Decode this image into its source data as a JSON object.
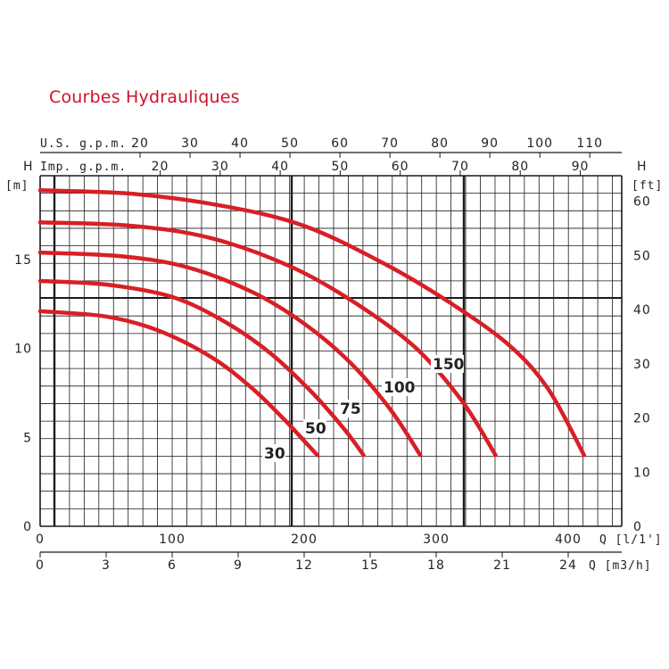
{
  "title": "Courbes Hydrauliques",
  "chart_data": {
    "type": "line",
    "title": "Courbes Hydrauliques",
    "axes": {
      "y_left_name": "H",
      "y_left_unit": "[m]",
      "y_right_name": "H",
      "y_right_unit": "[ft]",
      "x_bottom1_name": "Q [l/1']",
      "x_bottom2_name": "Q [m3/h]",
      "x_top1_name": "U.S. g.p.m.",
      "x_top2_name": "Imp. g.p.m."
    },
    "x_range_lmin": [
      0,
      420
    ],
    "y_range_m": [
      0,
      19.5
    ],
    "y_left_ticks": [
      0,
      5,
      10,
      15
    ],
    "y_right_ticks_ft": [
      0,
      10,
      20,
      30,
      40,
      50,
      60
    ],
    "x_lmin_ticks": [
      0,
      100,
      200,
      300,
      400
    ],
    "x_m3h_ticks": [
      0,
      3,
      6,
      9,
      12,
      15,
      18,
      21,
      24
    ],
    "x_usgpm_ticks": [
      20,
      30,
      40,
      50,
      60,
      70,
      80,
      90,
      100,
      110
    ],
    "x_impgpm_ticks": [
      20,
      30,
      40,
      50,
      60,
      70,
      80,
      90
    ],
    "grid": true,
    "series": [
      {
        "name": "30",
        "x_lmin": [
          0,
          50,
          90,
          130,
          160,
          185,
          200,
          210
        ],
        "y_m": [
          12.1,
          11.8,
          11.0,
          9.5,
          7.8,
          6.0,
          4.8,
          4.0
        ]
      },
      {
        "name": "50",
        "x_lmin": [
          0,
          50,
          100,
          140,
          175,
          205,
          230,
          245
        ],
        "y_m": [
          13.8,
          13.6,
          12.9,
          11.5,
          9.7,
          7.6,
          5.5,
          4.0
        ]
      },
      {
        "name": "75",
        "x_lmin": [
          0,
          60,
          110,
          160,
          200,
          235,
          265,
          288
        ],
        "y_m": [
          15.4,
          15.2,
          14.6,
          13.2,
          11.4,
          9.2,
          6.6,
          4.0
        ]
      },
      {
        "name": "100",
        "x_lmin": [
          0,
          70,
          130,
          190,
          240,
          285,
          320,
          345
        ],
        "y_m": [
          17.1,
          16.9,
          16.2,
          14.6,
          12.5,
          10.0,
          7.0,
          4.0
        ]
      },
      {
        "name": "150",
        "x_lmin": [
          0,
          70,
          140,
          200,
          260,
          310,
          355,
          385,
          412
        ],
        "y_m": [
          18.9,
          18.7,
          18.0,
          16.9,
          14.8,
          12.6,
          10.2,
          7.7,
          4.0
        ]
      }
    ],
    "series_labels": [
      "30",
      "50",
      "75",
      "100",
      "150"
    ],
    "colors": {
      "curve": "#d81f26",
      "grid": "#1a1a1a",
      "title": "#d0102a"
    }
  }
}
